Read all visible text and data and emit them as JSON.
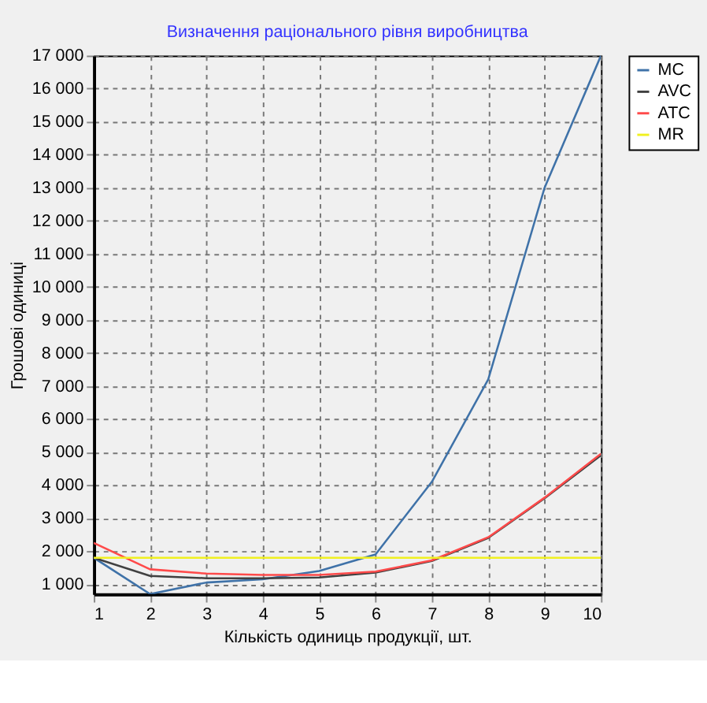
{
  "chart_data": {
    "type": "line",
    "title": "Визначення раціонального рівня виробництва",
    "xlabel": "Кількість одиниць продукції, шт.",
    "ylabel": "Грошові одиниці",
    "x": [
      1,
      2,
      3,
      4,
      5,
      6,
      7,
      8,
      9,
      10
    ],
    "series": [
      {
        "name": "MC",
        "color": "#3f72a8",
        "values": [
          1800,
          700,
          1050,
          1150,
          1400,
          1900,
          4100,
          7200,
          13000,
          17000
        ]
      },
      {
        "name": "AVC",
        "color": "#404040",
        "values": [
          1800,
          1250,
          1180,
          1180,
          1200,
          1350,
          1700,
          2400,
          3600,
          4900
        ]
      },
      {
        "name": "ATC",
        "color": "#ff4a4a",
        "values": [
          2250,
          1450,
          1320,
          1280,
          1280,
          1380,
          1720,
          2420,
          3620,
          4950
        ]
      },
      {
        "name": "MR",
        "color": "#f0f020",
        "values": [
          1800,
          1800,
          1800,
          1800,
          1800,
          1800,
          1800,
          1800,
          1800,
          1800
        ]
      }
    ],
    "xlim": [
      1,
      10
    ],
    "xticks": [
      1,
      2,
      3,
      4,
      5,
      6,
      7,
      8,
      9,
      10
    ],
    "ylim": [
      700,
      17000
    ],
    "yticks": [
      {
        "value": 1000,
        "label": "1 000"
      },
      {
        "value": 2000,
        "label": "2 000"
      },
      {
        "value": 3000,
        "label": "3 000"
      },
      {
        "value": 4000,
        "label": "4 000"
      },
      {
        "value": 5000,
        "label": "5 000"
      },
      {
        "value": 6000,
        "label": "6 000"
      },
      {
        "value": 7000,
        "label": "7 000"
      },
      {
        "value": 8000,
        "label": "8 000"
      },
      {
        "value": 9000,
        "label": "9 000"
      },
      {
        "value": 10000,
        "label": "10 000"
      },
      {
        "value": 11000,
        "label": "11 000"
      },
      {
        "value": 12000,
        "label": "12 000"
      },
      {
        "value": 13000,
        "label": "13 000"
      },
      {
        "value": 14000,
        "label": "14 000"
      },
      {
        "value": 15000,
        "label": "15 000"
      },
      {
        "value": 16000,
        "label": "16 000"
      },
      {
        "value": 17000,
        "label": "17 000"
      }
    ],
    "grid": true,
    "legend": "top right",
    "line_style": "solid",
    "marker": "none"
  }
}
